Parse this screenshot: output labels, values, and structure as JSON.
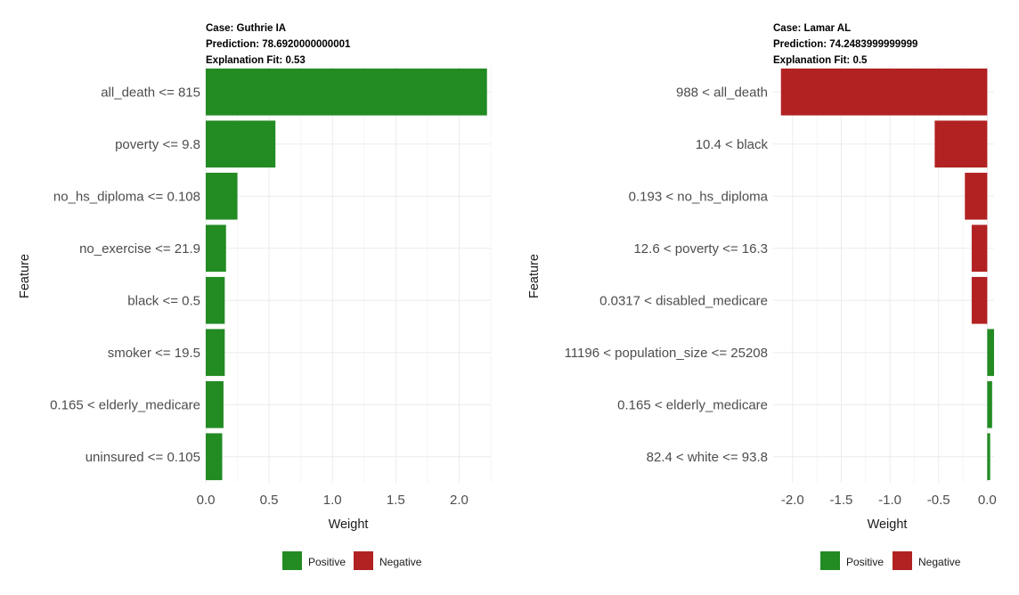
{
  "legend": {
    "title": "",
    "items": [
      {
        "label": "Positive",
        "color": "#228b22"
      },
      {
        "label": "Negative",
        "color": "#b22222"
      }
    ]
  },
  "chart_data": [
    {
      "type": "bar",
      "orientation": "horizontal",
      "header": {
        "case": "Case: Guthrie IA",
        "prediction": "Prediction: 78.6920000000001",
        "fit": "Explanation Fit: 0.53"
      },
      "xlabel": "Weight",
      "ylabel": "Feature",
      "xlim": [
        0,
        2.25
      ],
      "xticks": [
        0,
        0.5,
        1.0,
        1.5,
        2.0
      ],
      "xtick_labels": [
        "0.0",
        "0.5",
        "1.0",
        "1.5",
        "2.0"
      ],
      "grid": true,
      "categories": [
        "all_death <= 815",
        "poverty <= 9.8",
        "no_hs_diploma <= 0.108",
        "no_exercise <= 21.9",
        "black <= 0.5",
        "smoker <= 19.5",
        "0.165 < elderly_medicare",
        "uninsured <= 0.105"
      ],
      "values": [
        2.22,
        0.55,
        0.25,
        0.16,
        0.15,
        0.15,
        0.14,
        0.13
      ],
      "legend_position": "bottom"
    },
    {
      "type": "bar",
      "orientation": "horizontal",
      "header": {
        "case": "Case: Lamar AL",
        "prediction": "Prediction: 74.2483999999999",
        "fit": "Explanation Fit: 0.5"
      },
      "xlabel": "Weight",
      "ylabel": "Feature",
      "xlim": [
        -2.2,
        0.07
      ],
      "xticks": [
        -2.0,
        -1.5,
        -1.0,
        -0.5,
        0.0
      ],
      "xtick_labels": [
        "-2.0",
        "-1.5",
        "-1.0",
        "-0.5",
        "0.0"
      ],
      "grid": true,
      "categories": [
        "988 < all_death",
        "10.4 < black",
        "0.193 < no_hs_diploma",
        "12.6 < poverty <= 16.3",
        "0.0317 < disabled_medicare",
        "11196 < population_size <= 25208",
        "0.165 < elderly_medicare",
        "82.4 < white <= 93.8"
      ],
      "values": [
        -2.12,
        -0.54,
        -0.23,
        -0.16,
        -0.16,
        0.07,
        0.05,
        0.03
      ],
      "legend_position": "bottom"
    }
  ]
}
